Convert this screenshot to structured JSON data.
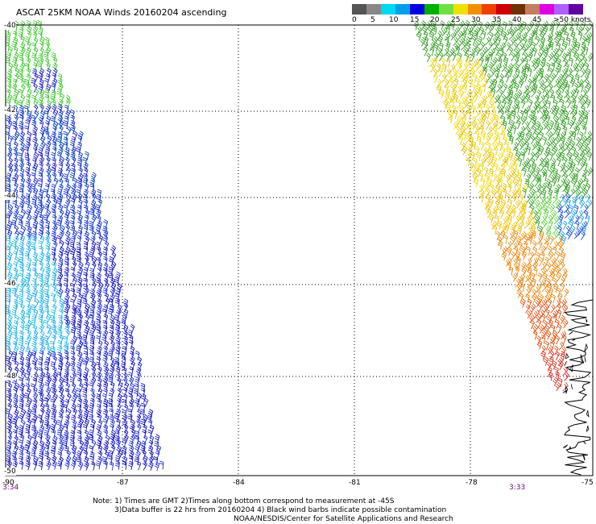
{
  "title": "ASCAT 25KM NOAA Winds 20160204 ascending",
  "legend": {
    "colors": [
      "#555555",
      "#888888",
      "#00d8f0",
      "#00a0e8",
      "#0000e0",
      "#00b000",
      "#70e040",
      "#f0e000",
      "#f09000",
      "#f04000",
      "#d00000",
      "#703000",
      "#c08060",
      "#e000e0",
      "#b060ff",
      "#6000a0"
    ],
    "labels": [
      "0",
      "5",
      "10",
      "15",
      "20",
      "25",
      "30",
      "35",
      "40",
      "45",
      ">50 knots"
    ]
  },
  "map": {
    "lat_labels": [
      "-40",
      "-42",
      "-44",
      "-46",
      "-48",
      "-50"
    ],
    "lon_labels": [
      "-90",
      "-87",
      "-84",
      "-81",
      "-78",
      "-75"
    ],
    "time_left": "3:34",
    "time_right": "3:33"
  },
  "notes": {
    "line1": "Note: 1) Times are GMT  2)Times along bottom correspond to measurement at -45S",
    "line2": "3)Data buffer is 22 hrs from 20160204  4) Black wind barbs indicate possible contamination",
    "line3": "NOAA/NESDIS/Center for Satellite Applications and Research"
  }
}
